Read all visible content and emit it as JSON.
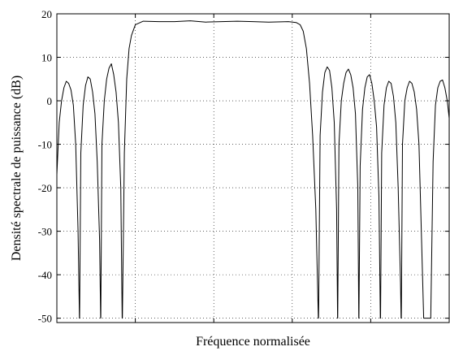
{
  "chart_data": {
    "type": "line",
    "title": "",
    "xlabel": "Fréquence normalisée",
    "ylabel": "Densité spectrale de puissance (dB)",
    "ylim": [
      -51,
      20
    ],
    "xlim": [
      0,
      1
    ],
    "yticks": [
      20,
      10,
      0,
      -10,
      -20,
      -30,
      -40,
      -50
    ],
    "ytick_labels": [
      "20",
      "10",
      "0",
      "-10",
      "-20",
      "-30",
      "-40",
      "-50"
    ],
    "xtick_labels": [],
    "grid": true,
    "legend": "none",
    "series": [
      {
        "x": [
          0.0,
          0.006,
          0.012,
          0.018,
          0.024,
          0.03,
          0.036,
          0.042,
          0.048,
          0.054,
          0.0575,
          0.058,
          0.061,
          0.067,
          0.073,
          0.079,
          0.085,
          0.091,
          0.097,
          0.103,
          0.109,
          0.1115,
          0.112,
          0.115,
          0.121,
          0.127,
          0.133,
          0.139,
          0.145,
          0.151,
          0.157,
          0.163,
          0.1665,
          0.167,
          0.172,
          0.178,
          0.184,
          0.19,
          0.2,
          0.22,
          0.26,
          0.3,
          0.34,
          0.38,
          0.42,
          0.46,
          0.5,
          0.54,
          0.59,
          0.61,
          0.62,
          0.628,
          0.636,
          0.644,
          0.652,
          0.66,
          0.6665,
          0.667,
          0.671,
          0.677,
          0.683,
          0.689,
          0.695,
          0.701,
          0.707,
          0.713,
          0.7155,
          0.716,
          0.719,
          0.725,
          0.731,
          0.737,
          0.743,
          0.749,
          0.755,
          0.761,
          0.767,
          0.7695,
          0.77,
          0.773,
          0.779,
          0.785,
          0.791,
          0.797,
          0.803,
          0.809,
          0.815,
          0.821,
          0.8245,
          0.825,
          0.828,
          0.834,
          0.84,
          0.846,
          0.852,
          0.858,
          0.864,
          0.87,
          0.876,
          0.8775,
          0.878,
          0.881,
          0.887,
          0.893,
          0.899,
          0.905,
          0.911,
          0.917,
          0.923,
          0.929,
          0.935,
          0.941,
          0.947,
          0.953,
          0.959,
          0.965,
          0.971,
          0.977,
          0.983,
          0.989,
          0.995,
          1.0
        ],
        "y": [
          -17,
          -5,
          0,
          3,
          4.5,
          4,
          2.5,
          -1,
          -10,
          -30,
          -50,
          -50,
          -12,
          -1,
          3.5,
          5.5,
          5,
          2,
          -3,
          -14,
          -32,
          -50,
          -50,
          -10,
          0,
          5,
          7.5,
          8.5,
          6,
          2,
          -5,
          -20,
          -50,
          -50,
          -12,
          5,
          12,
          15,
          17.5,
          18.3,
          18.2,
          18.2,
          18.4,
          18.1,
          18.2,
          18.3,
          18.2,
          18.1,
          18.2,
          18.0,
          17.5,
          16,
          12,
          4,
          -8,
          -25,
          -50,
          -50,
          -8,
          2,
          6.5,
          7.8,
          7,
          3,
          -5,
          -25,
          -50,
          -50,
          -10,
          0,
          4,
          6.5,
          7.3,
          6,
          3,
          -3,
          -20,
          -50,
          -50,
          -15,
          -2,
          3,
          5.5,
          6,
          4,
          0,
          -6,
          -22,
          -50,
          -50,
          -12,
          -1,
          3,
          4.5,
          4,
          1,
          -5,
          -20,
          -42,
          -50,
          -50,
          -10,
          0,
          3,
          4.5,
          4,
          2,
          -2,
          -10,
          -30,
          -50,
          -50,
          -50,
          -50,
          -14,
          -1,
          3,
          4.5,
          4.8,
          3,
          0,
          -4
        ]
      }
    ]
  }
}
